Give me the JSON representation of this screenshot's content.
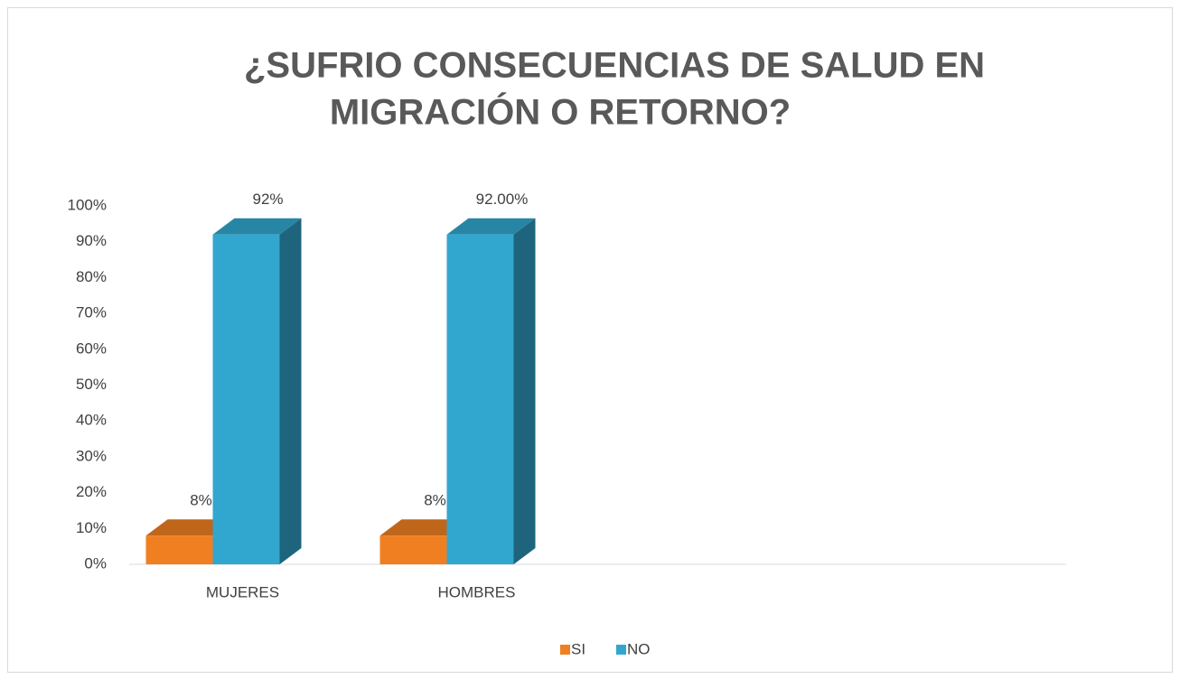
{
  "chart_data": {
    "type": "bar3d",
    "title": [
      "¿SUFRIO CONSECUENCIAS DE SALUD EN",
      "MIGRACIÓN O RETORNO?"
    ],
    "categories": [
      "MUJERES",
      "HOMBRES"
    ],
    "series": [
      {
        "name": "SI",
        "color": "#f07f22",
        "values": [
          8,
          8
        ],
        "value_labels": [
          "8%",
          "8%"
        ]
      },
      {
        "name": "NO",
        "color": "#31a7cf",
        "values": [
          92,
          92
        ],
        "value_labels": [
          "92%",
          "92.00%"
        ]
      }
    ],
    "ylim": [
      0,
      100
    ],
    "yticks": [
      {
        "value": 0,
        "label": "0%"
      },
      {
        "value": 10,
        "label": "10%"
      },
      {
        "value": 20,
        "label": "20%"
      },
      {
        "value": 30,
        "label": "30%"
      },
      {
        "value": 40,
        "label": "40%"
      },
      {
        "value": 50,
        "label": "50%"
      },
      {
        "value": 60,
        "label": "60%"
      },
      {
        "value": 70,
        "label": "70%"
      },
      {
        "value": 80,
        "label": "80%"
      },
      {
        "value": 90,
        "label": "90%"
      },
      {
        "value": 100,
        "label": "100%"
      }
    ],
    "legend": "bottom"
  }
}
